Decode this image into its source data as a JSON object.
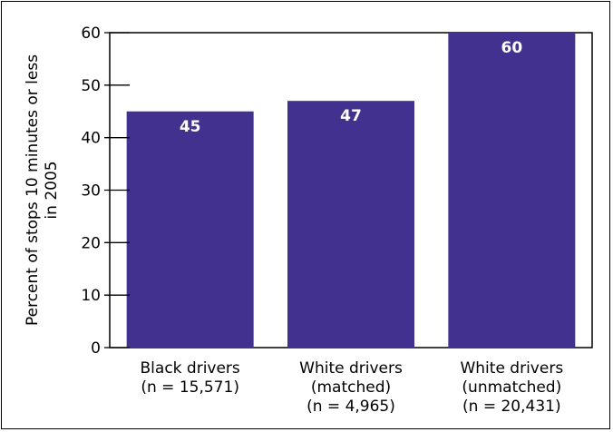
{
  "chart_data": {
    "type": "bar",
    "categories": [
      [
        "Black drivers",
        "(n = 15,571)"
      ],
      [
        "White drivers",
        "(matched)",
        "(n = 4,965)"
      ],
      [
        "White drivers",
        "(unmatched)",
        "(n = 20,431)"
      ]
    ],
    "values": [
      45,
      47,
      60
    ],
    "data_labels": [
      "45",
      "47",
      "60"
    ],
    "ylabel": [
      "Percent of stops 10 minutes or less",
      "in 2005"
    ],
    "ylim": [
      0,
      60
    ],
    "yticks": [
      0,
      10,
      20,
      30,
      40,
      50,
      60
    ],
    "grid": false,
    "legend": "none",
    "bar_color": "#43318f"
  }
}
